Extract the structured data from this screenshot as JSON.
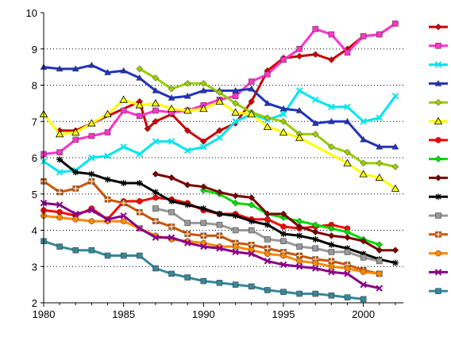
{
  "chart_data": {
    "type": "line",
    "title": "",
    "xlabel": "",
    "ylabel": "",
    "xlim": [
      1980,
      2002.5
    ],
    "ylim": [
      2,
      10
    ],
    "x_ticks": [
      1980,
      1985,
      1990,
      1995,
      2000
    ],
    "y_ticks": [
      2,
      3,
      4,
      5,
      6,
      7,
      8,
      9,
      10
    ],
    "grid": "horizontal-dotted",
    "legend": "right",
    "series": [
      {
        "color": "#cc0000",
        "marker": "diamond",
        "points": [
          [
            1981,
            6.75
          ],
          [
            1982,
            6.75
          ],
          [
            1986,
            7.55
          ],
          [
            1986.5,
            6.8
          ],
          [
            1987,
            7.0
          ],
          [
            1988,
            7.2
          ],
          [
            1989,
            6.75
          ],
          [
            1990,
            6.45
          ],
          [
            1991,
            6.75
          ],
          [
            1992,
            6.95
          ],
          [
            1993,
            7.55
          ],
          [
            1994,
            8.4
          ],
          [
            1995,
            8.75
          ],
          [
            1996,
            8.8
          ],
          [
            1997,
            8.85
          ],
          [
            1998,
            8.7
          ],
          [
            1999,
            9.0
          ],
          [
            2000,
            9.35
          ],
          [
            2001,
            9.4
          ],
          [
            2002,
            9.7
          ]
        ]
      },
      {
        "color": "#ff33cc",
        "marker": "square",
        "points": [
          [
            1980,
            6.1
          ],
          [
            1981,
            6.15
          ],
          [
            1982,
            6.5
          ],
          [
            1983,
            6.6
          ],
          [
            1984,
            6.7
          ],
          [
            1985,
            7.3
          ],
          [
            1986,
            7.15
          ],
          [
            1987,
            7.3
          ],
          [
            1988,
            7.25
          ],
          [
            1989,
            7.3
          ],
          [
            1990,
            7.45
          ],
          [
            1991,
            7.6
          ],
          [
            1992,
            7.7
          ],
          [
            1993,
            8.1
          ],
          [
            1994,
            8.3
          ],
          [
            1995,
            8.7
          ],
          [
            1996,
            9.0
          ],
          [
            1997,
            9.55
          ],
          [
            1998,
            9.4
          ],
          [
            1999,
            8.9
          ],
          [
            2000,
            9.35
          ],
          [
            2001,
            9.4
          ],
          [
            2002,
            9.7
          ]
        ]
      },
      {
        "color": "#00e5ee",
        "marker": "x",
        "points": [
          [
            1980,
            5.9
          ],
          [
            1981,
            5.6
          ],
          [
            1982,
            5.65
          ],
          [
            1983,
            6.0
          ],
          [
            1984,
            6.05
          ],
          [
            1985,
            6.3
          ],
          [
            1986,
            6.1
          ],
          [
            1987,
            6.45
          ],
          [
            1988,
            6.45
          ],
          [
            1989,
            6.2
          ],
          [
            1990,
            6.3
          ],
          [
            1991,
            6.55
          ],
          [
            1992,
            7.0
          ],
          [
            1993,
            7.2
          ],
          [
            1994,
            7.05
          ],
          [
            1995,
            7.2
          ],
          [
            1996,
            7.85
          ],
          [
            1997,
            7.6
          ],
          [
            1998,
            7.4
          ],
          [
            1999,
            7.4
          ],
          [
            2000,
            7.0
          ],
          [
            2001,
            7.1
          ],
          [
            2002,
            7.7
          ]
        ]
      },
      {
        "color": "#2233bb",
        "marker": "triangle",
        "points": [
          [
            1980,
            8.5
          ],
          [
            1981,
            8.45
          ],
          [
            1982,
            8.45
          ],
          [
            1983,
            8.55
          ],
          [
            1984,
            8.35
          ],
          [
            1985,
            8.4
          ],
          [
            1986,
            8.2
          ],
          [
            1987,
            7.85
          ],
          [
            1988,
            7.65
          ],
          [
            1989,
            7.7
          ],
          [
            1990,
            7.85
          ],
          [
            1991,
            7.85
          ],
          [
            1992,
            7.85
          ],
          [
            1993,
            7.9
          ],
          [
            1994,
            7.5
          ],
          [
            1995,
            7.35
          ],
          [
            1996,
            7.3
          ],
          [
            1997,
            6.95
          ],
          [
            1998,
            7.0
          ],
          [
            1999,
            7.0
          ],
          [
            2000,
            6.5
          ],
          [
            2001,
            6.3
          ],
          [
            2002,
            6.3
          ]
        ]
      },
      {
        "color": "#99cc00",
        "marker": "diamond",
        "points": [
          [
            1986,
            8.45
          ],
          [
            1987,
            8.2
          ],
          [
            1988,
            7.9
          ],
          [
            1989,
            8.05
          ],
          [
            1990,
            8.05
          ],
          [
            1991,
            7.8
          ],
          [
            1992,
            7.5
          ],
          [
            1993,
            7.25
          ],
          [
            1994,
            7.1
          ],
          [
            1995,
            7.0
          ],
          [
            1996,
            6.65
          ],
          [
            1997,
            6.65
          ],
          [
            1998,
            6.3
          ],
          [
            1999,
            6.15
          ],
          [
            2000,
            5.85
          ],
          [
            2001,
            5.85
          ],
          [
            2002,
            5.75
          ]
        ]
      },
      {
        "color": "#ffff00",
        "marker": "triangle-open",
        "points": [
          [
            1980,
            7.2
          ],
          [
            1981,
            6.65
          ],
          [
            1982,
            6.7
          ],
          [
            1983,
            6.95
          ],
          [
            1984,
            7.2
          ],
          [
            1985,
            7.6
          ],
          [
            1986,
            7.45
          ],
          [
            1987,
            7.5
          ],
          [
            1988,
            7.35
          ],
          [
            1989,
            7.3
          ],
          [
            1990,
            7.35
          ],
          [
            1991,
            7.55
          ],
          [
            1992,
            7.25
          ],
          [
            1993,
            7.2
          ],
          [
            1994,
            6.85
          ],
          [
            1995,
            6.7
          ],
          [
            1996,
            6.55
          ],
          [
            1999,
            5.85
          ],
          [
            2000,
            5.55
          ],
          [
            2001,
            5.45
          ],
          [
            2002,
            5.15
          ]
        ]
      },
      {
        "color": "#ff0000",
        "marker": "circle",
        "points": [
          [
            1980,
            4.55
          ],
          [
            1981,
            4.5
          ],
          [
            1982,
            4.4
          ],
          [
            1983,
            4.6
          ],
          [
            1984,
            4.3
          ],
          [
            1985,
            4.8
          ],
          [
            1986,
            4.8
          ],
          [
            1987,
            4.9
          ],
          [
            1988,
            4.85
          ],
          [
            1989,
            4.75
          ],
          [
            1990,
            4.55
          ],
          [
            1991,
            4.45
          ],
          [
            1992,
            4.45
          ],
          [
            1993,
            4.3
          ],
          [
            1994,
            4.3
          ],
          [
            1995,
            4.1
          ],
          [
            1996,
            4.05
          ],
          [
            1997,
            4.1
          ],
          [
            1998,
            4.15
          ],
          [
            1999,
            4.05
          ]
        ]
      },
      {
        "color": "#00dd00",
        "marker": "diamond",
        "points": [
          [
            1990,
            5.1
          ],
          [
            1991,
            5.0
          ],
          [
            1992,
            4.75
          ],
          [
            1993,
            4.7
          ],
          [
            1994,
            4.45
          ],
          [
            1995,
            4.35
          ],
          [
            1996,
            4.25
          ],
          [
            1997,
            4.15
          ],
          [
            1998,
            4.05
          ],
          [
            1999,
            3.95
          ],
          [
            2000,
            3.75
          ],
          [
            2001,
            3.6
          ]
        ]
      },
      {
        "color": "#7a0000",
        "marker": "diamond",
        "points": [
          [
            1987,
            5.55
          ],
          [
            1988,
            5.45
          ],
          [
            1989,
            5.25
          ],
          [
            1990,
            5.2
          ],
          [
            1991,
            5.05
          ],
          [
            1992,
            4.95
          ],
          [
            1993,
            4.9
          ],
          [
            1994,
            4.45
          ],
          [
            1995,
            4.45
          ],
          [
            1996,
            4.1
          ],
          [
            1997,
            3.95
          ],
          [
            1998,
            3.85
          ],
          [
            1999,
            3.8
          ],
          [
            2000,
            3.7
          ],
          [
            2001,
            3.45
          ],
          [
            2002,
            3.45
          ]
        ]
      },
      {
        "color": "#000000",
        "marker": "asterisk",
        "points": [
          [
            1981,
            5.95
          ],
          [
            1982,
            5.6
          ],
          [
            1983,
            5.55
          ],
          [
            1984,
            5.4
          ],
          [
            1985,
            5.3
          ],
          [
            1986,
            5.3
          ],
          [
            1987,
            5.05
          ],
          [
            1988,
            4.8
          ],
          [
            1989,
            4.7
          ],
          [
            1990,
            4.6
          ],
          [
            1991,
            4.45
          ],
          [
            1992,
            4.4
          ],
          [
            1993,
            4.25
          ],
          [
            1994,
            4.15
          ],
          [
            1995,
            3.9
          ],
          [
            1996,
            3.85
          ],
          [
            1997,
            3.75
          ],
          [
            1998,
            3.6
          ],
          [
            1999,
            3.5
          ],
          [
            2000,
            3.35
          ],
          [
            2001,
            3.2
          ],
          [
            2002,
            3.1
          ]
        ]
      },
      {
        "color": "#999999",
        "marker": "square",
        "points": [
          [
            1987,
            4.6
          ],
          [
            1988,
            4.5
          ],
          [
            1989,
            4.2
          ],
          [
            1990,
            4.2
          ],
          [
            1991,
            4.15
          ],
          [
            1992,
            4.0
          ],
          [
            1993,
            4.0
          ],
          [
            1994,
            3.75
          ],
          [
            1995,
            3.7
          ],
          [
            1996,
            3.55
          ],
          [
            1997,
            3.5
          ],
          [
            1998,
            3.4
          ],
          [
            1999,
            3.4
          ],
          [
            2000,
            3.25
          ],
          [
            2001,
            3.15
          ]
        ]
      },
      {
        "color": "#cc5500",
        "marker": "square-plus",
        "points": [
          [
            1980,
            5.35
          ],
          [
            1981,
            5.05
          ],
          [
            1982,
            5.15
          ],
          [
            1983,
            5.35
          ],
          [
            1984,
            4.85
          ],
          [
            1985,
            4.75
          ],
          [
            1986,
            4.5
          ],
          [
            1987,
            4.25
          ],
          [
            1988,
            4.1
          ],
          [
            1989,
            3.9
          ],
          [
            1990,
            3.85
          ],
          [
            1991,
            3.85
          ],
          [
            1992,
            3.65
          ],
          [
            1993,
            3.6
          ],
          [
            1994,
            3.5
          ],
          [
            1995,
            3.4
          ],
          [
            1996,
            3.3
          ],
          [
            1997,
            3.2
          ],
          [
            1998,
            3.15
          ],
          [
            1999,
            3.05
          ],
          [
            2000,
            2.9
          ],
          [
            2001,
            2.8
          ]
        ]
      },
      {
        "color": "#ff8800",
        "marker": "circle",
        "points": [
          [
            1980,
            4.4
          ],
          [
            1981,
            4.35
          ],
          [
            1982,
            4.3
          ],
          [
            1983,
            4.25
          ],
          [
            1984,
            4.25
          ],
          [
            1985,
            4.25
          ],
          [
            1986,
            4.05
          ],
          [
            1987,
            3.85
          ],
          [
            1988,
            3.75
          ],
          [
            1989,
            3.7
          ],
          [
            1990,
            3.65
          ],
          [
            1991,
            3.55
          ],
          [
            1992,
            3.55
          ],
          [
            1993,
            3.45
          ],
          [
            1994,
            3.35
          ],
          [
            1995,
            3.3
          ],
          [
            1996,
            3.15
          ],
          [
            1997,
            3.1
          ],
          [
            1998,
            3.0
          ],
          [
            1999,
            2.95
          ],
          [
            2000,
            2.85
          ],
          [
            2001,
            2.8
          ]
        ]
      },
      {
        "color": "#880088",
        "marker": "x",
        "points": [
          [
            1980,
            4.75
          ],
          [
            1981,
            4.7
          ],
          [
            1982,
            4.45
          ],
          [
            1983,
            4.55
          ],
          [
            1984,
            4.3
          ],
          [
            1985,
            4.4
          ],
          [
            1986,
            4.05
          ],
          [
            1987,
            3.8
          ],
          [
            1988,
            3.8
          ],
          [
            1989,
            3.65
          ],
          [
            1990,
            3.55
          ],
          [
            1991,
            3.5
          ],
          [
            1992,
            3.4
          ],
          [
            1993,
            3.35
          ],
          [
            1994,
            3.15
          ],
          [
            1995,
            3.05
          ],
          [
            1996,
            3.0
          ],
          [
            1997,
            2.95
          ],
          [
            1998,
            2.85
          ],
          [
            1999,
            2.8
          ],
          [
            2000,
            2.5
          ],
          [
            2001,
            2.4
          ]
        ]
      },
      {
        "color": "#338899",
        "marker": "square",
        "points": [
          [
            1980,
            3.7
          ],
          [
            1981,
            3.55
          ],
          [
            1982,
            3.45
          ],
          [
            1983,
            3.45
          ],
          [
            1984,
            3.3
          ],
          [
            1985,
            3.3
          ],
          [
            1986,
            3.3
          ],
          [
            1987,
            2.95
          ],
          [
            1988,
            2.8
          ],
          [
            1989,
            2.7
          ],
          [
            1990,
            2.6
          ],
          [
            1991,
            2.55
          ],
          [
            1992,
            2.5
          ],
          [
            1993,
            2.45
          ],
          [
            1994,
            2.35
          ],
          [
            1995,
            2.3
          ],
          [
            1996,
            2.25
          ],
          [
            1997,
            2.25
          ],
          [
            1998,
            2.2
          ],
          [
            1999,
            2.15
          ],
          [
            2000,
            2.1
          ]
        ]
      }
    ]
  }
}
